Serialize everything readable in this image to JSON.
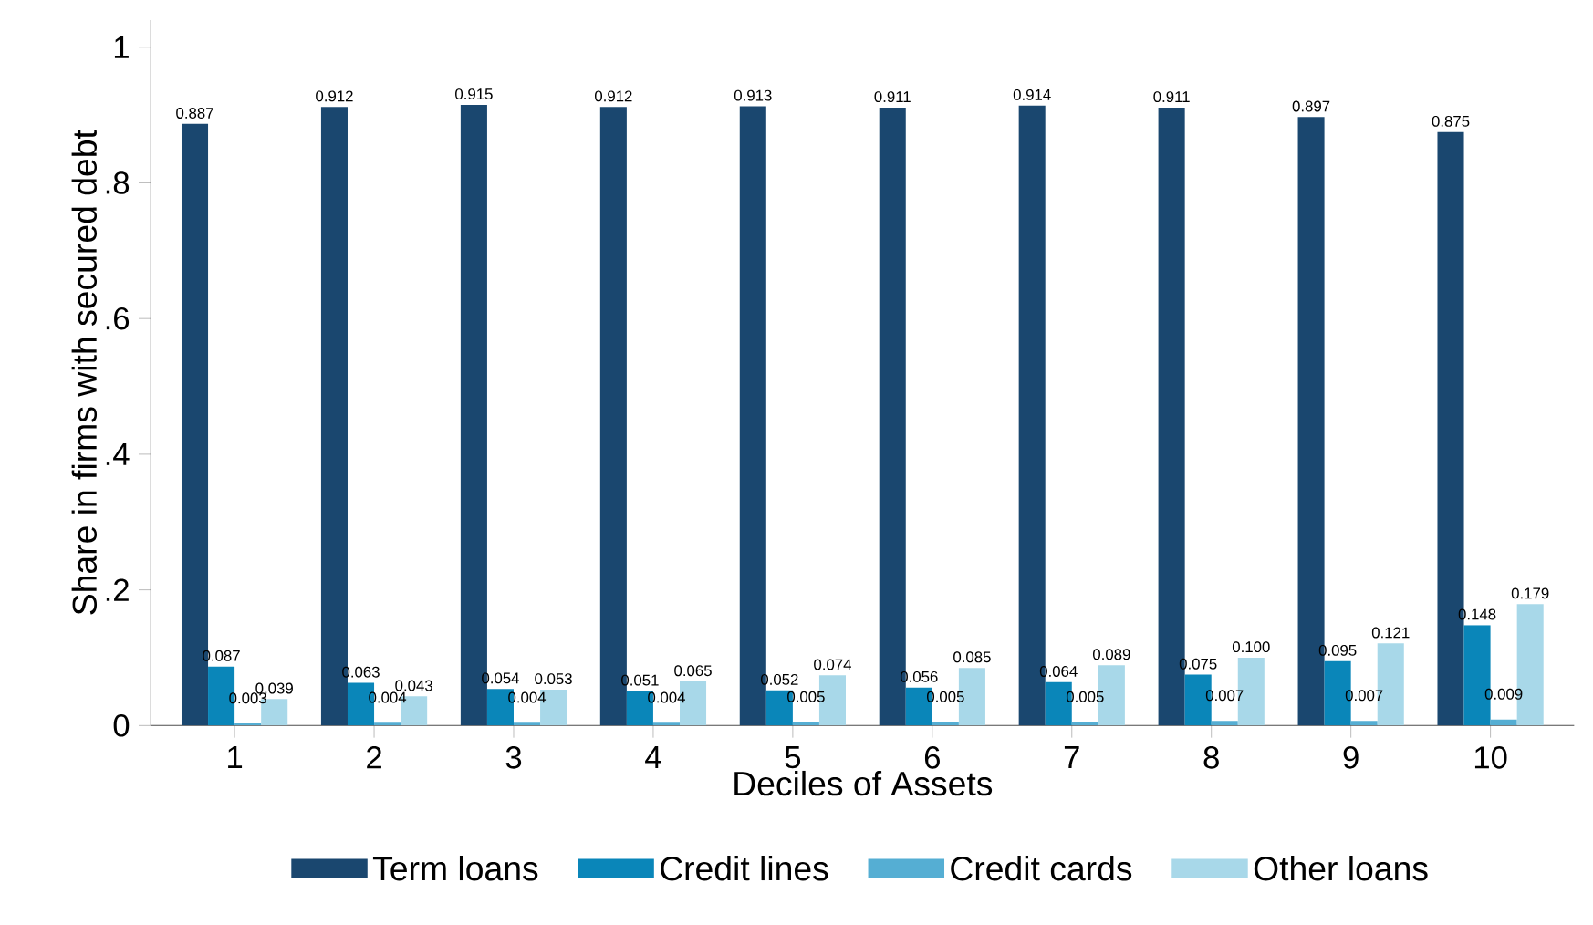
{
  "chart_data": {
    "type": "bar",
    "xlabel": "Deciles of Assets",
    "ylabel": "Share in firms with secured debt",
    "categories": [
      "1",
      "2",
      "3",
      "4",
      "5",
      "6",
      "7",
      "8",
      "9",
      "10"
    ],
    "ylim": [
      0,
      1.04
    ],
    "yticks": [
      0,
      {
        "value": 0.2,
        "label": ".2"
      },
      {
        "value": 0.4,
        "label": ".4"
      },
      {
        "value": 0.6,
        "label": ".6"
      },
      {
        "value": 0.8,
        "label": ".8"
      },
      1
    ],
    "grid": false,
    "legend": "bottom",
    "series": [
      {
        "name": "Term loans",
        "color": "#1a476f",
        "values": [
          0.887,
          0.912,
          0.915,
          0.912,
          0.913,
          0.911,
          0.914,
          0.911,
          0.897,
          0.875
        ],
        "value_labels": [
          "0.887",
          "0.912",
          "0.915",
          "0.912",
          "0.913",
          "0.911",
          "0.914",
          "0.911",
          "0.897",
          "0.875"
        ]
      },
      {
        "name": "Credit lines",
        "color": "#0a86b9",
        "values": [
          0.087,
          0.063,
          0.054,
          0.051,
          0.052,
          0.056,
          0.064,
          0.075,
          0.095,
          0.148
        ],
        "value_labels": [
          "0.087",
          "0.063",
          "0.054",
          "0.051",
          "0.052",
          "0.056",
          "0.064",
          "0.075",
          "0.095",
          "0.148"
        ]
      },
      {
        "name": "Credit cards",
        "color": "#55aed3",
        "values": [
          0.003,
          0.004,
          0.004,
          0.004,
          0.005,
          0.005,
          0.005,
          0.007,
          0.007,
          0.009
        ],
        "value_labels": [
          "0.003",
          "0.004",
          "0.004",
          "0.004",
          "0.005",
          "0.005",
          "0.005",
          "0.007",
          "0.007",
          "0.009"
        ]
      },
      {
        "name": "Other loans",
        "color": "#a8d8e9",
        "values": [
          0.039,
          0.043,
          0.053,
          0.065,
          0.074,
          0.085,
          0.089,
          0.1,
          0.121,
          0.179
        ],
        "value_labels": [
          "0.039",
          "0.043",
          "0.053",
          "0.065",
          "0.074",
          "0.085",
          "0.089",
          "0.100",
          "0.121",
          "0.179"
        ]
      }
    ]
  }
}
